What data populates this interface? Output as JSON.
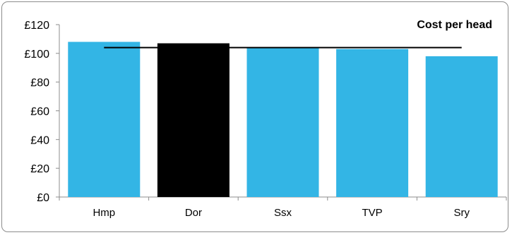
{
  "chart_data": {
    "type": "bar",
    "title": "Cost per head",
    "xlabel": "",
    "ylabel": "",
    "categories": [
      "Hmp",
      "Dor",
      "Ssx",
      "TVP",
      "Sry"
    ],
    "values": [
      108,
      107,
      104,
      103,
      98
    ],
    "highlight_category": "Dor",
    "reference_line": {
      "value": 104
    },
    "ylim": [
      0,
      120
    ],
    "yticks": [
      0,
      20,
      40,
      60,
      80,
      100,
      120
    ],
    "ytick_labels": [
      "£0",
      "£20",
      "£40",
      "£60",
      "£80",
      "£100",
      "£120"
    ],
    "grid": false,
    "legend": "none",
    "colors": {
      "bar": "#33b5e5",
      "highlight": "#000000",
      "line": "#000000",
      "axis": "#8c8c8c"
    }
  }
}
